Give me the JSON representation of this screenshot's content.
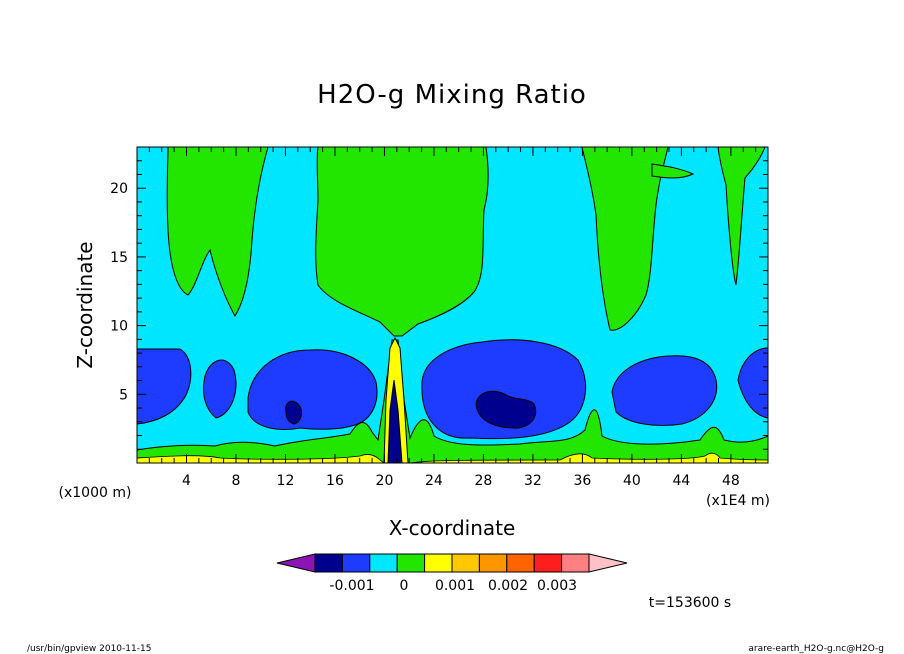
{
  "chart_data": {
    "type": "heatmap",
    "title": "H2O-g Mixing Ratio",
    "xlabel": "X-coordinate",
    "ylabel": "Z-coordinate",
    "x_unit_left": "(x1000 m)",
    "x_unit_right": "(x1E4 m)",
    "xlim": [
      0,
      51
    ],
    "ylim": [
      0,
      23
    ],
    "x_ticks": [
      "4",
      "8",
      "12",
      "16",
      "20",
      "24",
      "28",
      "32",
      "36",
      "40",
      "44",
      "48"
    ],
    "y_ticks": [
      "5",
      "10",
      "15",
      "20"
    ],
    "colorbar": {
      "colors": [
        "#8a14b4",
        "#00008f",
        "#1e3cff",
        "#00e6ff",
        "#22e600",
        "#ffff00",
        "#ffc800",
        "#ff9600",
        "#ff6400",
        "#ff1e1e",
        "#ff8080",
        "#ffc0c8"
      ],
      "labels": [
        "-0.001",
        "0",
        "0.001",
        "0.002",
        "0.003"
      ]
    },
    "regions": [
      {
        "level": "background",
        "color": "#00e6ff"
      },
      {
        "level": "above",
        "color": "#22e600"
      },
      {
        "level": "below",
        "color": "#1e3cff"
      },
      {
        "level": "lowest",
        "color": "#00008f"
      },
      {
        "level": "highest",
        "color": "#ffff00"
      }
    ]
  },
  "time_label": "t=153600 s",
  "footer_left": "/usr/bin/gpview  2010-11-15",
  "footer_right": "arare-earth_H2O-g.nc@H2O-g"
}
